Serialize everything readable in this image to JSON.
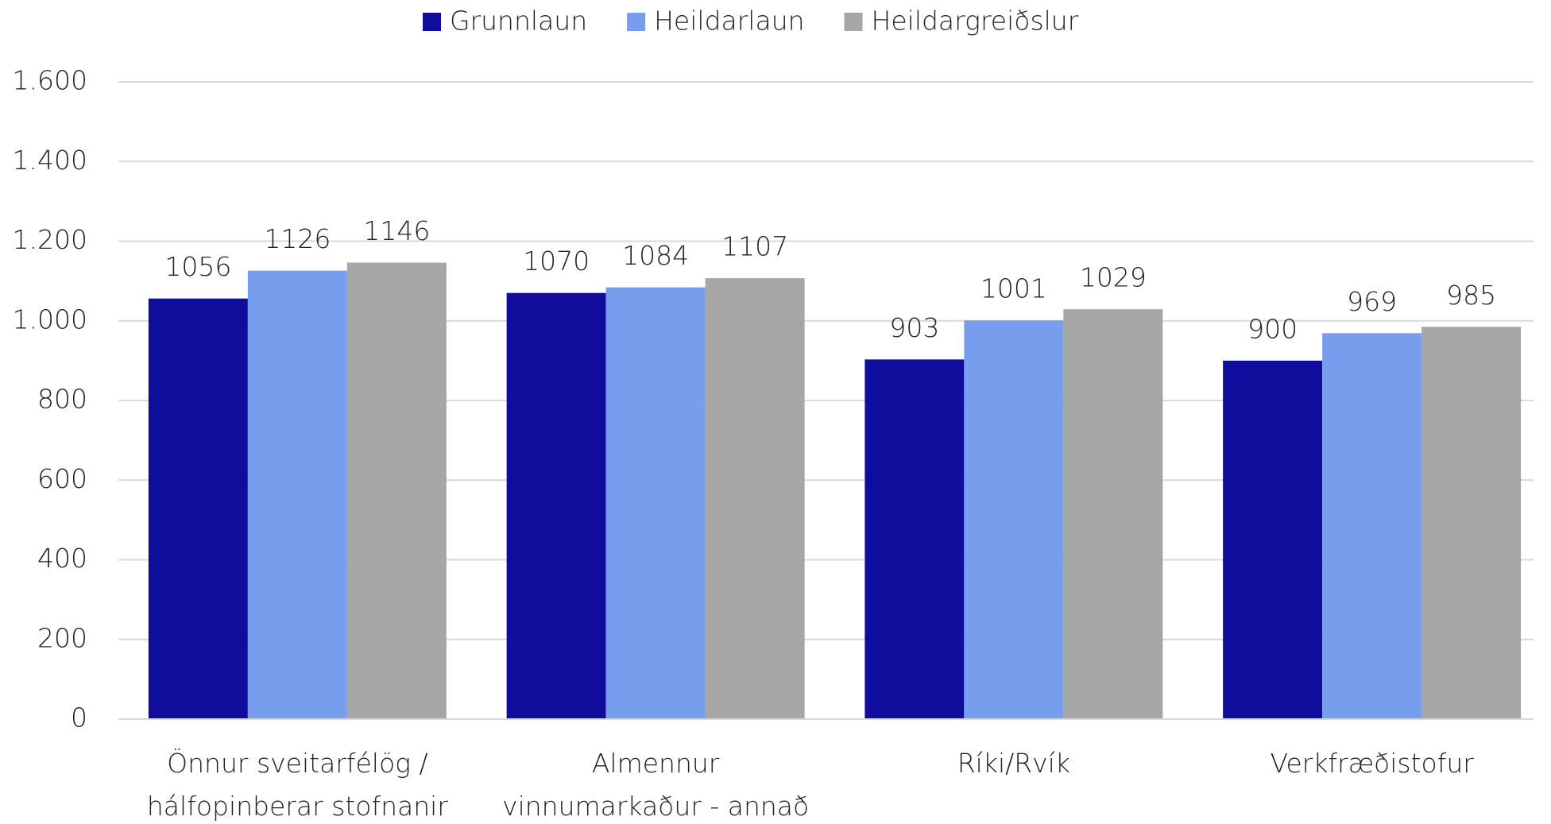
{
  "chart_data": {
    "type": "bar",
    "categories": [
      "Önnur sveitarfélög / hálfopinberar stofnanir",
      "Almennur vinnumarkaður - annað",
      "Ríki/Rvík",
      "Verkfræðistofur"
    ],
    "series": [
      {
        "name": "Grunnlaun",
        "color": "#100c9c",
        "values": [
          1056,
          1070,
          903,
          900
        ]
      },
      {
        "name": "Heildarlaun",
        "color": "#779ded",
        "values": [
          1126,
          1084,
          1001,
          969
        ]
      },
      {
        "name": "Heildargreiðslur",
        "color": "#a6a6a6",
        "values": [
          1146,
          1107,
          1029,
          985
        ]
      }
    ],
    "ylim": [
      0,
      1600
    ],
    "yticks": [
      0,
      200,
      400,
      600,
      800,
      {
        "value": 1000,
        "label": "1.000"
      },
      {
        "value": 1200,
        "label": "1.200"
      },
      {
        "value": 1400,
        "label": "1.400"
      },
      {
        "value": 1600,
        "label": "1.600"
      }
    ],
    "grid": true,
    "legend": "top"
  }
}
